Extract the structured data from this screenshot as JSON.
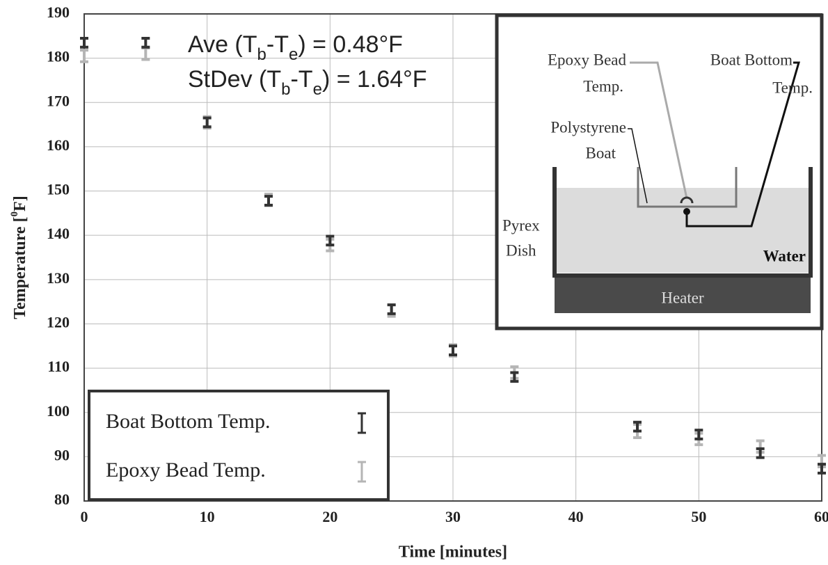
{
  "chart_data": {
    "type": "errorbar",
    "x": [
      0,
      5,
      10,
      15,
      20,
      25,
      30,
      35,
      45,
      50,
      55,
      60
    ],
    "series": [
      {
        "name": "Boat Bottom Temp.",
        "color": "#333333",
        "values": [
          183.5,
          183.5,
          165.5,
          147.8,
          138.8,
          123.3,
          114,
          108,
          96.8,
          95,
          90.8,
          87.3
        ],
        "errors": [
          1,
          1,
          1,
          1,
          1,
          1,
          1,
          1,
          1,
          1,
          1,
          1
        ]
      },
      {
        "name": "Epoxy Bead Temp.",
        "color": "#b5b5b5",
        "values": [
          180.5,
          181,
          165.5,
          148,
          137.8,
          123,
          114,
          109,
          95.8,
          94,
          92.3,
          89
        ],
        "errors": [
          1.3,
          1.3,
          1.3,
          1.3,
          1.3,
          1.3,
          1.3,
          1.3,
          1.5,
          1.3,
          1.3,
          1.3
        ]
      }
    ],
    "xlabel": "Time [minutes]",
    "ylabel": [
      "Temperature [",
      "0",
      "F]"
    ],
    "xlim": [
      0,
      60
    ],
    "ylim": [
      80,
      190
    ],
    "xticks": [
      0,
      10,
      20,
      30,
      40,
      50,
      60
    ],
    "yticks": [
      80,
      90,
      100,
      110,
      120,
      130,
      140,
      150,
      160,
      170,
      180,
      190
    ],
    "grid": true,
    "legend": "lower left",
    "annotations": [
      [
        "Ave (T",
        "b",
        "-T",
        "e",
        ") = 0.48°F"
      ],
      [
        "StDev (T",
        "b",
        "-T",
        "e",
        ") = 1.64°F"
      ]
    ]
  },
  "inset": {
    "epoxy_label": [
      "Epoxy Bead",
      "Temp."
    ],
    "boat_bottom_label": [
      "Boat Bottom",
      "Temp."
    ],
    "boat_label": [
      "Polystyrene",
      "Boat"
    ],
    "dish_label": [
      "Pyrex",
      "Dish"
    ],
    "water_label": "Water",
    "heater_label": "Heater"
  }
}
